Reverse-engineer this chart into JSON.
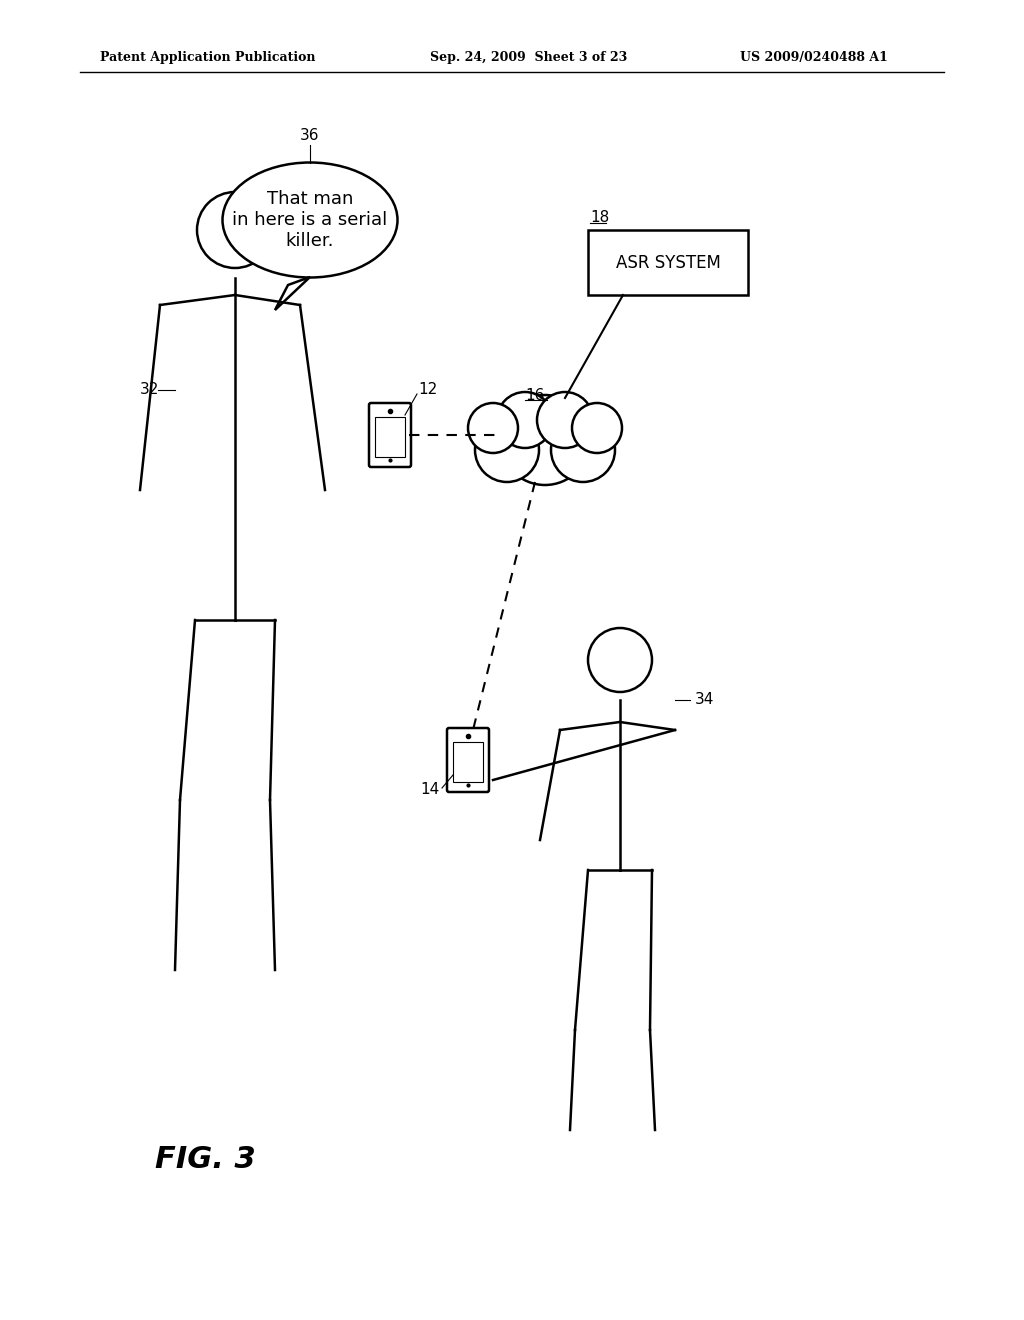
{
  "background_color": "#ffffff",
  "header_left": "Patent Application Publication",
  "header_center": "Sep. 24, 2009  Sheet 3 of 23",
  "header_right": "US 2009/0240488 A1",
  "figure_label": "FIG. 3",
  "speech_bubble_text": "That man\nin here is a serial\nkiller.",
  "asr_box_label": "ASR SYSTEM",
  "labels": {
    "person1": "32",
    "person2": "34",
    "phone1": "12",
    "phone2": "14",
    "cloud": "16",
    "speech": "36",
    "asr": "18"
  }
}
